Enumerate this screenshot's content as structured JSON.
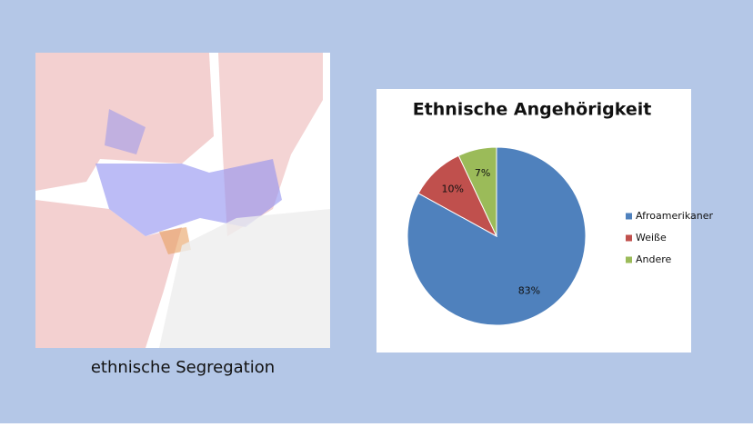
{
  "map": {
    "caption": "ethnische Segregation"
  },
  "chart_data": {
    "type": "pie",
    "title": "Ethnische Angehörigkeit",
    "categories": [
      "Afroamerikaner",
      "Weiße",
      "Andere"
    ],
    "values": [
      83,
      10,
      7
    ],
    "value_labels": [
      "83%",
      "10%",
      "7%"
    ],
    "colors": [
      "#4f81bd",
      "#c0504d",
      "#9bbb59"
    ],
    "legend": "right"
  }
}
